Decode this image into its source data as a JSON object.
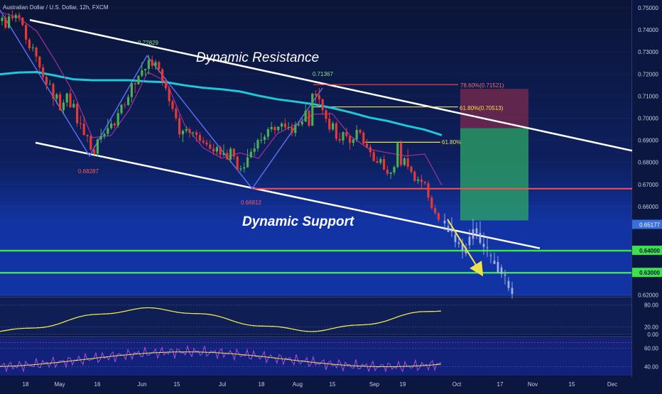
{
  "header": {
    "title": "Australian Dollar / U.S. Dollar, 12h, FXCM"
  },
  "colors": {
    "up": "#4caf50",
    "down": "#e53935",
    "ema": "#1ec8d8",
    "sma": "#a0309e",
    "resistance": "#ff4d4d",
    "fib": "#f0e04a",
    "level": "#3be24a",
    "oscillator": "#e8e84a",
    "rsi": "#b24ae0"
  },
  "annotations": {
    "dynamic_resistance": "Dynamic Resistance",
    "dynamic_support": "Dynamic Support",
    "high_1": "0.72829",
    "low_1": "0.68287",
    "high_2": "0.71367",
    "low_2": "0.66812",
    "fib_786": "78.60%(0.71521)",
    "fib_618a": "61.80%(0.70513)",
    "fib_618b": "61.80%"
  },
  "y_axis": {
    "ticks": [
      "0.75000",
      "0.74000",
      "0.73000",
      "0.72000",
      "0.71000",
      "0.70000",
      "0.69000",
      "0.68000",
      "0.67000",
      "0.66000",
      "0.62000"
    ],
    "price_tag": "0.65177",
    "level_tags": [
      "0.64000",
      "0.63000"
    ]
  },
  "indicator1": {
    "ticks": [
      "80.00",
      "20.00",
      "0.00"
    ]
  },
  "indicator2": {
    "ticks": [
      "60.00",
      "40.00"
    ]
  },
  "x_axis": {
    "ticks": [
      "18",
      "May",
      "16",
      "Jun",
      "15",
      "Jul",
      "18",
      "Aug",
      "15",
      "Sep",
      "19",
      "Oct",
      "17",
      "Nov",
      "15",
      "Dec"
    ]
  },
  "chart_data": {
    "type": "candlestick",
    "symbol": "Australian Dollar / U.S. Dollar",
    "interval": "12h",
    "y_range": [
      0.62,
      0.75
    ],
    "candles": [
      [
        0.744,
        0.7465,
        0.742,
        0.7455
      ],
      [
        0.7455,
        0.7468,
        0.7403,
        0.741
      ],
      [
        0.741,
        0.7475,
        0.7404,
        0.7461
      ],
      [
        0.7461,
        0.7489,
        0.7441,
        0.7453
      ],
      [
        0.7453,
        0.7476,
        0.7435,
        0.7467
      ],
      [
        0.7467,
        0.7479,
        0.7437,
        0.7455
      ],
      [
        0.7455,
        0.7458,
        0.7416,
        0.7422
      ],
      [
        0.7422,
        0.7429,
        0.7335,
        0.7356
      ],
      [
        0.7356,
        0.7364,
        0.7306,
        0.7317
      ],
      [
        0.7317,
        0.7337,
        0.7303,
        0.732
      ],
      [
        0.732,
        0.7325,
        0.7255,
        0.7279
      ],
      [
        0.7279,
        0.7282,
        0.7212,
        0.723
      ],
      [
        0.723,
        0.7246,
        0.7172,
        0.7187
      ],
      [
        0.7187,
        0.7197,
        0.7128,
        0.7154
      ],
      [
        0.7154,
        0.7173,
        0.7152,
        0.7155
      ],
      [
        0.7155,
        0.7162,
        0.7055,
        0.7088
      ],
      [
        0.7088,
        0.7115,
        0.7064,
        0.7108
      ],
      [
        0.7108,
        0.712,
        0.7034,
        0.7036
      ],
      [
        0.7036,
        0.7085,
        0.7016,
        0.7071
      ],
      [
        0.7071,
        0.7116,
        0.7052,
        0.7112
      ],
      [
        0.7112,
        0.7131,
        0.7047,
        0.7049
      ],
      [
        0.7049,
        0.7083,
        0.7045,
        0.7065
      ],
      [
        0.7065,
        0.707,
        0.6961,
        0.6977
      ],
      [
        0.6977,
        0.7012,
        0.6951,
        0.6976
      ],
      [
        0.6976,
        0.7011,
        0.6922,
        0.6924
      ],
      [
        0.6924,
        0.6928,
        0.6891,
        0.6918
      ],
      [
        0.6918,
        0.6929,
        0.6853,
        0.6858
      ],
      [
        0.6858,
        0.6875,
        0.6833,
        0.6839
      ],
      [
        0.6839,
        0.6909,
        0.6827,
        0.6904
      ],
      [
        0.6904,
        0.6952,
        0.6888,
        0.6919
      ],
      [
        0.6919,
        0.6935,
        0.6905,
        0.6929
      ],
      [
        0.6929,
        0.6997,
        0.6918,
        0.6955
      ],
      [
        0.6955,
        0.6994,
        0.6948,
        0.6976
      ],
      [
        0.6976,
        0.6983,
        0.6954,
        0.6967
      ],
      [
        0.6967,
        0.7042,
        0.6956,
        0.7023
      ],
      [
        0.7023,
        0.7064,
        0.7014,
        0.7061
      ],
      [
        0.7061,
        0.7072,
        0.7045,
        0.706
      ],
      [
        0.706,
        0.7108,
        0.7055,
        0.7096
      ],
      [
        0.7096,
        0.7164,
        0.7072,
        0.7159
      ],
      [
        0.7159,
        0.7172,
        0.7114,
        0.7153
      ],
      [
        0.7153,
        0.7194,
        0.7152,
        0.7192
      ],
      [
        0.7192,
        0.7254,
        0.7185,
        0.7217
      ],
      [
        0.7217,
        0.7224,
        0.7192,
        0.7223
      ],
      [
        0.7223,
        0.7287,
        0.7198,
        0.7264
      ],
      [
        0.7264,
        0.7283,
        0.7223,
        0.7237
      ],
      [
        0.7237,
        0.7265,
        0.7219,
        0.7254
      ],
      [
        0.7254,
        0.726,
        0.7207,
        0.7221
      ],
      [
        0.7221,
        0.7228,
        0.7146,
        0.7167
      ],
      [
        0.7167,
        0.7182,
        0.7124,
        0.7135
      ],
      [
        0.7135,
        0.7145,
        0.7055,
        0.7077
      ],
      [
        0.7077,
        0.7085,
        0.7031,
        0.7043
      ],
      [
        0.7043,
        0.7053,
        0.6989,
        0.7
      ],
      [
        0.7,
        0.7017,
        0.6912,
        0.6927
      ],
      [
        0.6927,
        0.6949,
        0.6892,
        0.6943
      ],
      [
        0.6943,
        0.6965,
        0.6932,
        0.695
      ],
      [
        0.695,
        0.6958,
        0.6911,
        0.6934
      ],
      [
        0.6934,
        0.694,
        0.6915,
        0.6936
      ],
      [
        0.6936,
        0.6946,
        0.6893,
        0.6924
      ],
      [
        0.6924,
        0.6938,
        0.6887,
        0.6898
      ],
      [
        0.6898,
        0.6915,
        0.6882,
        0.689
      ],
      [
        0.689,
        0.6903,
        0.6872,
        0.6881
      ],
      [
        0.6881,
        0.6901,
        0.6856,
        0.6862
      ],
      [
        0.6862,
        0.6885,
        0.6834,
        0.6849
      ],
      [
        0.6849,
        0.6875,
        0.6834,
        0.6869
      ],
      [
        0.6869,
        0.6877,
        0.6818,
        0.6834
      ],
      [
        0.6834,
        0.6882,
        0.6826,
        0.6843
      ],
      [
        0.6843,
        0.6859,
        0.6811,
        0.6813
      ],
      [
        0.6813,
        0.6871,
        0.6798,
        0.6862
      ],
      [
        0.6862,
        0.6864,
        0.6811,
        0.6826
      ],
      [
        0.6826,
        0.6833,
        0.6766,
        0.6767
      ],
      [
        0.6767,
        0.6786,
        0.6757,
        0.6772
      ],
      [
        0.6772,
        0.6799,
        0.6754,
        0.6778
      ],
      [
        0.6778,
        0.6861,
        0.6776,
        0.6823
      ],
      [
        0.6823,
        0.6863,
        0.6819,
        0.6848
      ],
      [
        0.6848,
        0.6889,
        0.6828,
        0.6863
      ],
      [
        0.6863,
        0.6909,
        0.6849,
        0.6901
      ],
      [
        0.6901,
        0.6935,
        0.6885,
        0.6902
      ],
      [
        0.6902,
        0.6926,
        0.6883,
        0.6916
      ],
      [
        0.6916,
        0.6959,
        0.6902,
        0.695
      ],
      [
        0.695,
        0.6984,
        0.6938,
        0.696
      ],
      [
        0.696,
        0.6968,
        0.6926,
        0.6946
      ],
      [
        0.6946,
        0.6962,
        0.6935,
        0.6962
      ],
      [
        0.6962,
        0.6983,
        0.6944,
        0.6976
      ],
      [
        0.6976,
        0.6999,
        0.6947,
        0.6958
      ],
      [
        0.6958,
        0.6982,
        0.6946,
        0.696
      ],
      [
        0.696,
        0.6977,
        0.6918,
        0.6933
      ],
      [
        0.6933,
        0.6985,
        0.6917,
        0.6968
      ],
      [
        0.6968,
        0.6985,
        0.6962,
        0.6972
      ],
      [
        0.6972,
        0.7001,
        0.6962,
        0.6984
      ],
      [
        0.6984,
        0.7063,
        0.6984,
        0.7034
      ],
      [
        0.7034,
        0.7041,
        0.6959,
        0.6966
      ],
      [
        0.6966,
        0.7115,
        0.6965,
        0.7111
      ],
      [
        0.7111,
        0.7127,
        0.7069,
        0.7104
      ],
      [
        0.7104,
        0.7137,
        0.7053,
        0.7085
      ],
      [
        0.7085,
        0.709,
        0.7014,
        0.7036
      ],
      [
        0.7036,
        0.7045,
        0.698,
        0.6997
      ],
      [
        0.6997,
        0.7027,
        0.6936,
        0.6949
      ],
      [
        0.6949,
        0.6987,
        0.6941,
        0.6977
      ],
      [
        0.6977,
        0.6985,
        0.6896,
        0.6906
      ],
      [
        0.6906,
        0.6936,
        0.6888,
        0.6899
      ],
      [
        0.6899,
        0.694,
        0.688,
        0.6937
      ],
      [
        0.6937,
        0.6957,
        0.691,
        0.6919
      ],
      [
        0.6919,
        0.6923,
        0.6857,
        0.6888
      ],
      [
        0.6888,
        0.6911,
        0.6873,
        0.6904
      ],
      [
        0.6904,
        0.6969,
        0.6892,
        0.6947
      ],
      [
        0.6947,
        0.6952,
        0.6926,
        0.6934
      ],
      [
        0.6934,
        0.6943,
        0.6877,
        0.6885
      ],
      [
        0.6885,
        0.6906,
        0.6863,
        0.6869
      ],
      [
        0.6869,
        0.6882,
        0.6824,
        0.6846
      ],
      [
        0.6846,
        0.6858,
        0.6804,
        0.6806
      ],
      [
        0.6806,
        0.6827,
        0.6796,
        0.6798
      ],
      [
        0.6798,
        0.6825,
        0.6789,
        0.6815
      ],
      [
        0.6815,
        0.6833,
        0.6765,
        0.6767
      ],
      [
        0.6767,
        0.6785,
        0.674,
        0.6748
      ],
      [
        0.6748,
        0.6757,
        0.6725,
        0.6754
      ],
      [
        0.6754,
        0.6787,
        0.6742,
        0.6779
      ],
      [
        0.6779,
        0.6896,
        0.6772,
        0.6888
      ],
      [
        0.6888,
        0.6901,
        0.6778,
        0.6788
      ],
      [
        0.6788,
        0.6826,
        0.6782,
        0.6818
      ],
      [
        0.6818,
        0.6861,
        0.6768,
        0.678
      ],
      [
        0.678,
        0.6786,
        0.6748,
        0.6757
      ],
      [
        0.6757,
        0.6765,
        0.6711,
        0.6716
      ],
      [
        0.6716,
        0.6735,
        0.6702,
        0.6722
      ],
      [
        0.6722,
        0.6744,
        0.6684,
        0.6711
      ],
      [
        0.6711,
        0.6716,
        0.6697,
        0.6705
      ],
      [
        0.6705,
        0.6716,
        0.6625,
        0.6641
      ],
      [
        0.6641,
        0.6651,
        0.6584,
        0.6593
      ],
      [
        0.6593,
        0.6609,
        0.6561,
        0.657
      ],
      [
        0.657,
        0.6576,
        0.6529,
        0.654
      ]
    ],
    "future_path": [
      [
        0.6536,
        0.6568,
        0.6492,
        0.6524
      ],
      [
        0.6511,
        0.6544,
        0.6486,
        0.6484
      ],
      [
        0.6486,
        0.6551,
        0.6462,
        0.6495
      ],
      [
        0.6473,
        0.6488,
        0.6415,
        0.6439
      ],
      [
        0.6438,
        0.6464,
        0.6413,
        0.6431
      ],
      [
        0.6435,
        0.6454,
        0.6364,
        0.6402
      ],
      [
        0.6387,
        0.6432,
        0.6375,
        0.6413
      ],
      [
        0.6425,
        0.6496,
        0.6408,
        0.6463
      ],
      [
        0.6454,
        0.6543,
        0.6425,
        0.6497
      ],
      [
        0.6501,
        0.6529,
        0.6452,
        0.6477
      ],
      [
        0.6481,
        0.6533,
        0.6427,
        0.6435
      ],
      [
        0.6431,
        0.6482,
        0.6381,
        0.6417
      ],
      [
        0.6413,
        0.6466,
        0.6371,
        0.6415
      ],
      [
        0.6379,
        0.6392,
        0.6342,
        0.6376
      ],
      [
        0.6355,
        0.6391,
        0.6343,
        0.6339
      ],
      [
        0.6349,
        0.6376,
        0.6296,
        0.6301
      ],
      [
        0.6324,
        0.6337,
        0.6277,
        0.6294
      ],
      [
        0.6292,
        0.6314,
        0.6247,
        0.6287
      ],
      [
        0.6263,
        0.628,
        0.6217,
        0.6231
      ],
      [
        0.6232,
        0.6259,
        0.6183,
        0.6204
      ]
    ],
    "ema200": [
      [
        0,
        0.7199
      ],
      [
        26,
        0.7207
      ],
      [
        52,
        0.7209
      ],
      [
        78,
        0.7193
      ],
      [
        104,
        0.7176
      ],
      [
        130,
        0.7172
      ],
      [
        156,
        0.7172
      ],
      [
        182,
        0.7172
      ],
      [
        208,
        0.7166
      ],
      [
        234,
        0.7163
      ],
      [
        260,
        0.7149
      ],
      [
        286,
        0.7138
      ],
      [
        312,
        0.7131
      ],
      [
        338,
        0.7121
      ],
      [
        364,
        0.7102
      ],
      [
        390,
        0.7086
      ],
      [
        416,
        0.7075
      ],
      [
        442,
        0.7063
      ],
      [
        468,
        0.7046
      ],
      [
        494,
        0.7026
      ],
      [
        520,
        0.7003
      ],
      [
        546,
        0.6987
      ],
      [
        572,
        0.6966
      ],
      [
        598,
        0.6948
      ],
      [
        622,
        0.6923
      ]
    ],
    "sma": [
      [
        0,
        0.7481
      ],
      [
        26,
        0.7456
      ],
      [
        52,
        0.7393
      ],
      [
        78,
        0.7259
      ],
      [
        104,
        0.7112
      ],
      [
        130,
        0.6912
      ],
      [
        156,
        0.6921
      ],
      [
        182,
        0.7039
      ],
      [
        208,
        0.7209
      ],
      [
        234,
        0.7166
      ],
      [
        260,
        0.6969
      ],
      [
        286,
        0.6866
      ],
      [
        312,
        0.6819
      ],
      [
        338,
        0.6843
      ],
      [
        364,
        0.6818
      ],
      [
        390,
        0.6929
      ],
      [
        416,
        0.6972
      ],
      [
        442,
        0.7018
      ],
      [
        468,
        0.702
      ],
      [
        494,
        0.6918
      ],
      [
        520,
        0.6859
      ],
      [
        546,
        0.6843
      ],
      [
        572,
        0.6829
      ],
      [
        598,
        0.6838
      ],
      [
        622,
        0.6696
      ]
    ],
    "trendlines": {
      "dynamic_resistance": [
        [
          42,
          0.7445
        ],
        [
          890,
          0.6853
        ]
      ],
      "dynamic_support": [
        [
          50,
          0.6889
        ],
        [
          760,
          0.6411
        ]
      ],
      "resistance_0668": [
        [
          355,
          0.6681
        ],
        [
          890,
          0.6681
        ]
      ]
    },
    "zigzag": [
      [
        0,
        0.749
      ],
      [
        126,
        0.6829
      ],
      [
        207,
        0.7283
      ],
      [
        355,
        0.6681
      ],
      [
        454,
        0.7137
      ]
    ],
    "fib_levels": [
      {
        "label": "78.60%",
        "value": 0.71521
      },
      {
        "label": "61.80%",
        "value": 0.70513
      },
      {
        "label": "61.80%",
        "value": 0.6891
      }
    ],
    "position": {
      "entry": 0.6955,
      "stop": 0.7133,
      "target": 0.6537
    },
    "horizontal_levels": [
      0.64,
      0.63
    ],
    "projected_arrow": [
      [
        630,
        0.6542
      ],
      [
        676,
        0.6305
      ]
    ]
  }
}
